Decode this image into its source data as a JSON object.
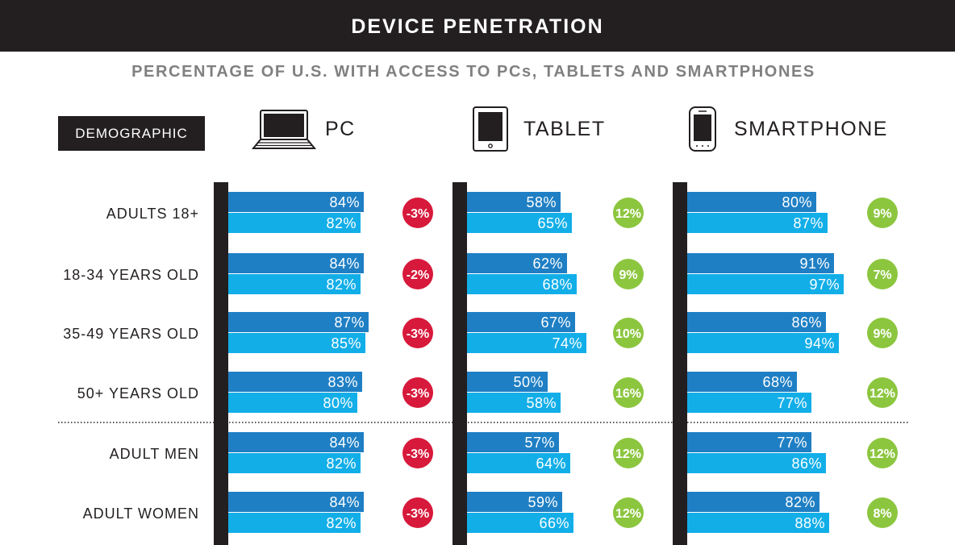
{
  "title": "DEVICE PENETRATION",
  "subtitle": "PERCENTAGE OF U.S. WITH ACCESS TO PCs, TABLETS AND SMARTPHONES",
  "demographic_label": "DEMOGRAPHIC",
  "icons": {
    "pc": "laptop-icon",
    "tablet": "tablet-icon",
    "smartphone": "smartphone-icon"
  },
  "colors": {
    "dark_bar": "#1f7fc4",
    "light_bar": "#12aee8",
    "negative": "#d7193b",
    "positive": "#8cc63f",
    "rule": "#231f20"
  },
  "chart_data": {
    "type": "bar",
    "categories": [
      "ADULTS 18+",
      "18-34 YEARS OLD",
      "35-49 YEARS OLD",
      "50+ YEARS OLD",
      "ADULT MEN",
      "ADULT WOMEN"
    ],
    "devices": [
      {
        "key": "pc",
        "name": "PC",
        "series": [
          {
            "values": [
              84,
              84,
              87,
              83,
              84,
              84
            ]
          },
          {
            "values": [
              82,
              82,
              85,
              80,
              82,
              82
            ]
          }
        ],
        "change": [
          "-3%",
          "-2%",
          "-3%",
          "-3%",
          "-3%",
          "-3%"
        ]
      },
      {
        "key": "tablet",
        "name": "TABLET",
        "series": [
          {
            "values": [
              58,
              62,
              67,
              50,
              57,
              59
            ]
          },
          {
            "values": [
              65,
              68,
              74,
              58,
              64,
              66
            ]
          }
        ],
        "change": [
          "12%",
          "9%",
          "10%",
          "16%",
          "12%",
          "12%"
        ]
      },
      {
        "key": "smartphone",
        "name": "SMARTPHONE",
        "series": [
          {
            "values": [
              80,
              91,
              86,
              68,
              77,
              82
            ]
          },
          {
            "values": [
              87,
              97,
              94,
              77,
              86,
              88
            ]
          }
        ],
        "change": [
          "9%",
          "7%",
          "9%",
          "12%",
          "12%",
          "8%"
        ]
      }
    ],
    "value_suffix": "%"
  }
}
